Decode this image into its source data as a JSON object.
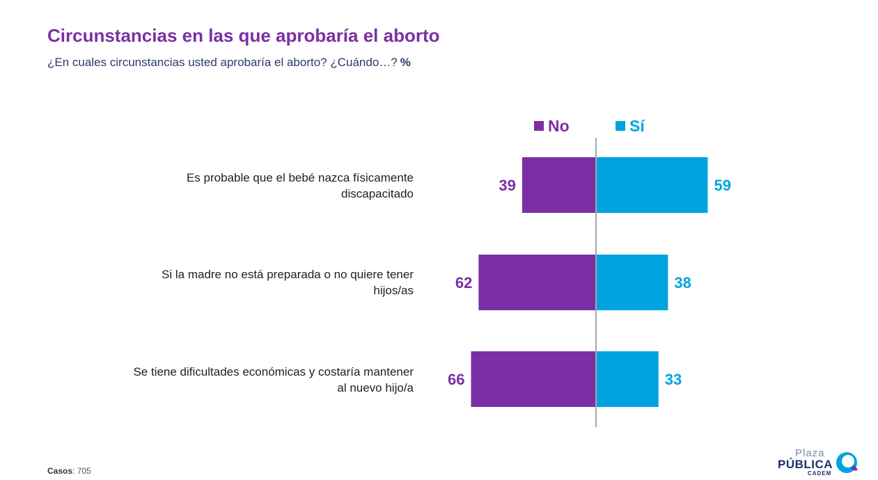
{
  "title": "Circunstancias en las que aprobaría el aborto",
  "subtitle": "¿En cuales circunstancias usted aprobaría el aborto? ¿Cuándo…?",
  "unit": "%",
  "legend": {
    "no": {
      "label": "No",
      "color": "#7b2fa5"
    },
    "si": {
      "label": "Sí",
      "color": "#00a3e0"
    }
  },
  "chart_data": {
    "type": "bar",
    "orientation": "diverging-horizontal",
    "categories": [
      [
        "Es probable que el bebé nazca físicamente",
        "discapacitado"
      ],
      [
        "Si la madre no está preparada o no quiere tener",
        "hijos/as"
      ],
      [
        "Se tiene dificultades económicas y costaría mantener",
        "al nuevo hijo/a"
      ]
    ],
    "series": [
      {
        "name": "No",
        "values": [
          39,
          62,
          66
        ],
        "color": "#7b2fa5"
      },
      {
        "name": "Sí",
        "values": [
          59,
          38,
          33
        ],
        "color": "#00a3e0"
      }
    ],
    "legend_position": "top",
    "grid": false
  },
  "footer": {
    "cases_label": "Casos",
    "cases_value": ": 705"
  },
  "logo": {
    "line1": "Plaza",
    "line2": "PÚBLICA",
    "line3": "CADEM"
  }
}
